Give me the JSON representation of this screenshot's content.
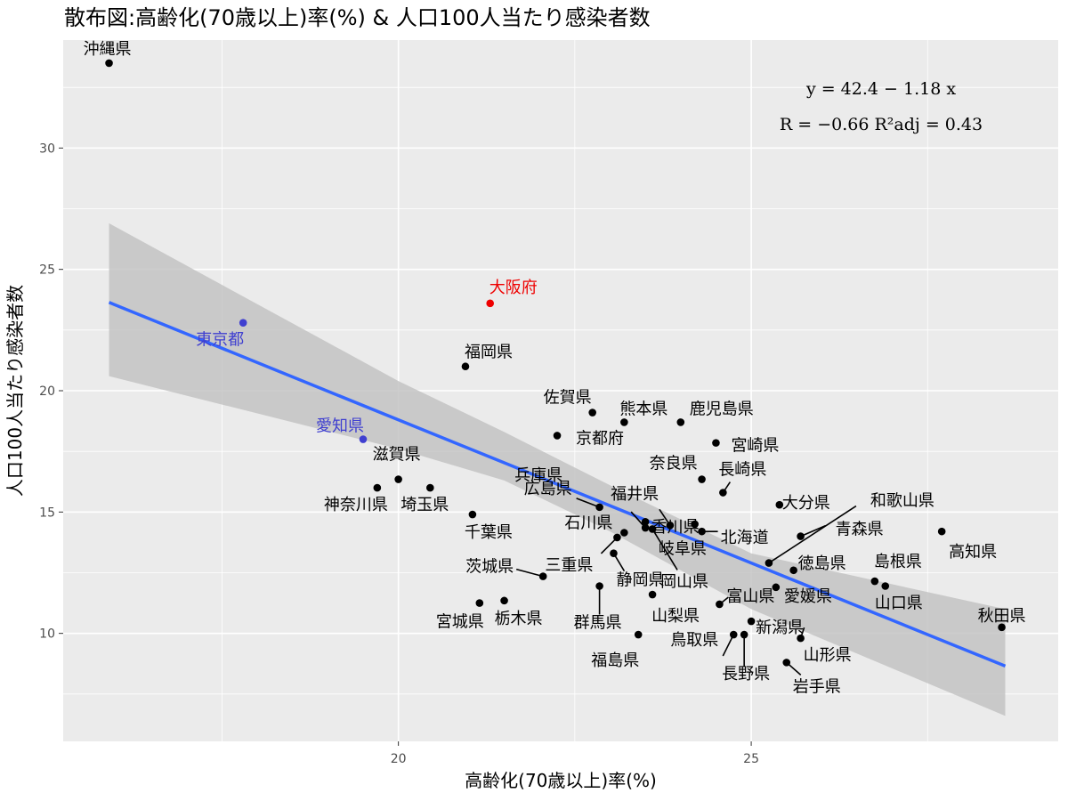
{
  "chart_data": {
    "type": "scatter",
    "title": "散布図:高齢化(70歳以上)率(%) & 人口100人当たり感染者数",
    "xlabel": "高齢化(70歳以上)率(%)",
    "ylabel": "人口100人当たり感染者数",
    "xlim": [
      15.25,
      29.35
    ],
    "ylim": [
      5.55,
      34.45
    ],
    "x_ticks": [
      20,
      25
    ],
    "y_ticks": [
      10,
      15,
      20,
      25,
      30
    ],
    "grid": true,
    "colors": {
      "panel": "#EBEBEB",
      "grid": "#FFFFFF",
      "point": "#000000",
      "fit": "#3366FF",
      "band": "#C0C0C0",
      "tokyo_aichi": "#3F3FD0",
      "osaka": "#EE0000"
    },
    "annotation": {
      "equation": "y = 42.4 − 1.18 x",
      "stats": "R = −0.66     R²adj = 0.43"
    },
    "fit": {
      "intercept": 42.4,
      "slope": -1.18,
      "x_range": [
        15.9,
        28.6
      ]
    },
    "band": {
      "upper": [
        [
          15.9,
          26.9
        ],
        [
          20.0,
          20.4
        ],
        [
          21.5,
          18.3
        ],
        [
          23.0,
          16.1
        ],
        [
          25.0,
          13.3
        ],
        [
          28.6,
          11.0
        ]
      ],
      "lower": [
        [
          15.9,
          20.6
        ],
        [
          20.0,
          17.6
        ],
        [
          21.5,
          16.3
        ],
        [
          23.0,
          14.2
        ],
        [
          25.0,
          11.0
        ],
        [
          28.6,
          6.6
        ]
      ]
    },
    "points": [
      {
        "name": "沖縄県",
        "x": 15.9,
        "y": 33.5,
        "color": "#000000"
      },
      {
        "name": "東京都",
        "x": 17.8,
        "y": 22.8,
        "color": "#3F3FD0"
      },
      {
        "name": "愛知県",
        "x": 19.5,
        "y": 18.0,
        "color": "#3F3FD0"
      },
      {
        "name": "大阪府",
        "x": 21.3,
        "y": 23.6,
        "color": "#EE0000"
      },
      {
        "name": "福岡県",
        "x": 20.95,
        "y": 21.0,
        "color": "#000000"
      },
      {
        "name": "神奈川県",
        "x": 19.7,
        "y": 16.0,
        "color": "#000000"
      },
      {
        "name": "滋賀県",
        "x": 20.0,
        "y": 16.35,
        "color": "#000000"
      },
      {
        "name": "埼玉県",
        "x": 20.45,
        "y": 16.0,
        "color": "#000000"
      },
      {
        "name": "千葉県",
        "x": 21.05,
        "y": 14.9,
        "color": "#000000"
      },
      {
        "name": "宮城県",
        "x": 21.15,
        "y": 11.25,
        "color": "#000000"
      },
      {
        "name": "栃木県",
        "x": 21.5,
        "y": 11.35,
        "color": "#000000"
      },
      {
        "name": "茨城県",
        "x": 22.05,
        "y": 12.35,
        "color": "#000000"
      },
      {
        "name": "京都府",
        "x": 22.25,
        "y": 18.15,
        "color": "#000000"
      },
      {
        "name": "佐賀県",
        "x": 22.75,
        "y": 19.1,
        "color": "#000000"
      },
      {
        "name": "広島県",
        "x": 22.85,
        "y": 15.2,
        "color": "#000000"
      },
      {
        "name": "兵庫県",
        "x": 23.5,
        "y": 14.6,
        "color": "#000000"
      },
      {
        "name": "熊本県",
        "x": 23.2,
        "y": 18.7,
        "color": "#000000"
      },
      {
        "name": "福井県",
        "x": 23.5,
        "y": 14.35,
        "color": "#000000"
      },
      {
        "name": "三重県",
        "x": 23.1,
        "y": 13.95,
        "color": "#000000"
      },
      {
        "name": "石川県",
        "x": 23.2,
        "y": 14.15,
        "color": "#000000"
      },
      {
        "name": "静岡県",
        "x": 23.05,
        "y": 13.3,
        "color": "#000000"
      },
      {
        "name": "群馬県",
        "x": 22.85,
        "y": 11.95,
        "color": "#000000"
      },
      {
        "name": "福島県",
        "x": 23.4,
        "y": 9.95,
        "color": "#000000"
      },
      {
        "name": "岐阜県",
        "x": 23.85,
        "y": 14.45,
        "color": "#000000"
      },
      {
        "name": "岡山県",
        "x": 23.6,
        "y": 14.3,
        "color": "#000000"
      },
      {
        "name": "山梨県",
        "x": 23.6,
        "y": 11.6,
        "color": "#000000"
      },
      {
        "name": "鹿児島県",
        "x": 24.0,
        "y": 18.7,
        "color": "#000000"
      },
      {
        "name": "宮崎県",
        "x": 24.5,
        "y": 17.85,
        "color": "#000000"
      },
      {
        "name": "奈良県",
        "x": 24.3,
        "y": 16.35,
        "color": "#000000"
      },
      {
        "name": "香川県",
        "x": 24.2,
        "y": 14.5,
        "color": "#000000"
      },
      {
        "name": "長崎県",
        "x": 24.6,
        "y": 15.8,
        "color": "#000000"
      },
      {
        "name": "北海道",
        "x": 24.3,
        "y": 14.2,
        "color": "#000000"
      },
      {
        "name": "富山県",
        "x": 24.55,
        "y": 11.2,
        "color": "#000000"
      },
      {
        "name": "鳥取県",
        "x": 24.75,
        "y": 9.95,
        "color": "#000000"
      },
      {
        "name": "新潟県",
        "x": 25.0,
        "y": 10.5,
        "color": "#000000"
      },
      {
        "name": "長野県",
        "x": 24.9,
        "y": 9.95,
        "color": "#000000"
      },
      {
        "name": "大分県",
        "x": 25.4,
        "y": 15.3,
        "color": "#000000"
      },
      {
        "name": "和歌山県",
        "x": 25.25,
        "y": 12.9,
        "color": "#000000"
      },
      {
        "name": "青森県",
        "x": 25.7,
        "y": 14.0,
        "color": "#000000"
      },
      {
        "name": "徳島県",
        "x": 25.6,
        "y": 12.6,
        "color": "#000000"
      },
      {
        "name": "愛媛県",
        "x": 25.35,
        "y": 11.9,
        "color": "#000000"
      },
      {
        "name": "山形県",
        "x": 25.7,
        "y": 9.8,
        "color": "#000000"
      },
      {
        "name": "岩手県",
        "x": 25.5,
        "y": 8.8,
        "color": "#000000"
      },
      {
        "name": "島根県",
        "x": 26.75,
        "y": 12.15,
        "color": "#000000"
      },
      {
        "name": "山口県",
        "x": 26.9,
        "y": 11.95,
        "color": "#000000"
      },
      {
        "name": "高知県",
        "x": 27.7,
        "y": 14.2,
        "color": "#000000"
      },
      {
        "name": "秋田県",
        "x": 28.55,
        "y": 10.25,
        "color": "#000000"
      }
    ]
  }
}
